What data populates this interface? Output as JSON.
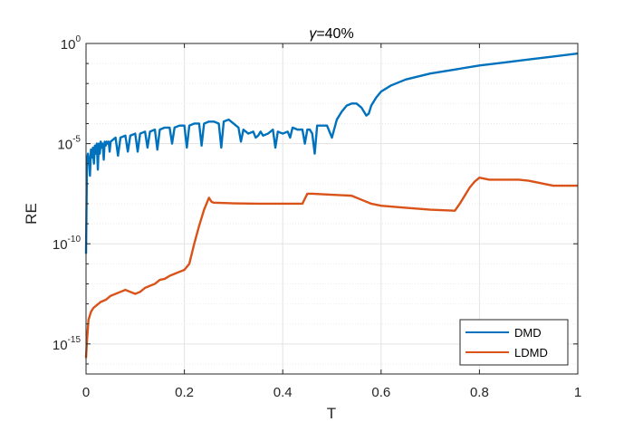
{
  "chart_data": {
    "type": "line",
    "title_prefix": "γ",
    "title_suffix": "=40%",
    "xlabel": "T",
    "ylabel": "RE",
    "xlim": [
      0,
      1
    ],
    "ylim_log10": [
      -16.5,
      0
    ],
    "y_scale": "log",
    "grid": true,
    "legend_placement": "bottom-right",
    "x_ticks": [
      "0",
      "0.2",
      "0.4",
      "0.6",
      "0.8",
      "1"
    ],
    "y_ticks": [
      {
        "base": "10",
        "exp": "0"
      },
      {
        "base": "10",
        "exp": "-5"
      },
      {
        "base": "10",
        "exp": "-10"
      },
      {
        "base": "10",
        "exp": "-15"
      }
    ],
    "series": [
      {
        "name": "DMD",
        "color": "#0072BD",
        "x": [
          0,
          0.002,
          0.004,
          0.006,
          0.008,
          0.01,
          0.012,
          0.014,
          0.016,
          0.018,
          0.02,
          0.022,
          0.024,
          0.026,
          0.028,
          0.03,
          0.032,
          0.034,
          0.036,
          0.038,
          0.04,
          0.042,
          0.044,
          0.046,
          0.048,
          0.05,
          0.06,
          0.065,
          0.07,
          0.08,
          0.085,
          0.09,
          0.1,
          0.105,
          0.11,
          0.12,
          0.125,
          0.13,
          0.14,
          0.145,
          0.15,
          0.16,
          0.17,
          0.175,
          0.18,
          0.19,
          0.2,
          0.205,
          0.21,
          0.22,
          0.23,
          0.235,
          0.24,
          0.25,
          0.26,
          0.27,
          0.275,
          0.28,
          0.29,
          0.3,
          0.31,
          0.315,
          0.32,
          0.33,
          0.34,
          0.345,
          0.35,
          0.355,
          0.36,
          0.37,
          0.38,
          0.385,
          0.39,
          0.4,
          0.41,
          0.415,
          0.42,
          0.43,
          0.44,
          0.445,
          0.45,
          0.455,
          0.46,
          0.465,
          0.47,
          0.48,
          0.49,
          0.5,
          0.51,
          0.52,
          0.53,
          0.54,
          0.55,
          0.56,
          0.57,
          0.575,
          0.58,
          0.59,
          0.6,
          0.62,
          0.65,
          0.7,
          0.75,
          0.8,
          0.85,
          0.9,
          0.95,
          1.0
        ],
        "y_log10": [
          -10.5,
          -5.8,
          -5.5,
          -5.8,
          -6.6,
          -5.3,
          -5.7,
          -5.2,
          -6.0,
          -5.1,
          -5.5,
          -5.0,
          -6.3,
          -5.0,
          -5.5,
          -4.9,
          -5.2,
          -5.0,
          -5.8,
          -4.9,
          -5.1,
          -4.9,
          -5.0,
          -4.9,
          -5.4,
          -4.9,
          -4.7,
          -5.6,
          -4.7,
          -4.6,
          -5.4,
          -4.6,
          -4.5,
          -5.4,
          -4.5,
          -4.4,
          -5.2,
          -4.4,
          -4.3,
          -5.3,
          -4.3,
          -4.2,
          -4.2,
          -5.0,
          -4.2,
          -4.1,
          -4.1,
          -5.2,
          -4.1,
          -4.0,
          -4.0,
          -5.1,
          -4.0,
          -3.9,
          -3.9,
          -4.0,
          -5.2,
          -3.9,
          -3.8,
          -4.0,
          -4.2,
          -4.9,
          -4.3,
          -4.5,
          -4.4,
          -4.7,
          -4.6,
          -4.4,
          -4.6,
          -4.5,
          -4.3,
          -5.2,
          -4.4,
          -4.5,
          -4.4,
          -4.7,
          -4.2,
          -4.3,
          -4.3,
          -5.0,
          -4.3,
          -4.3,
          -4.5,
          -5.5,
          -4.1,
          -4.1,
          -4.1,
          -4.7,
          -3.8,
          -3.4,
          -3.1,
          -3.0,
          -3.0,
          -3.2,
          -3.6,
          -3.5,
          -3.1,
          -2.7,
          -2.4,
          -2.1,
          -1.8,
          -1.5,
          -1.3,
          -1.1,
          -0.95,
          -0.8,
          -0.65,
          -0.5
        ]
      },
      {
        "name": "LDMD",
        "color": "#D95319",
        "x": [
          0,
          0.002,
          0.005,
          0.01,
          0.015,
          0.02,
          0.03,
          0.04,
          0.05,
          0.06,
          0.07,
          0.08,
          0.09,
          0.1,
          0.11,
          0.12,
          0.13,
          0.14,
          0.15,
          0.16,
          0.17,
          0.18,
          0.19,
          0.2,
          0.21,
          0.22,
          0.23,
          0.24,
          0.25,
          0.255,
          0.26,
          0.3,
          0.35,
          0.4,
          0.44,
          0.45,
          0.46,
          0.5,
          0.54,
          0.56,
          0.58,
          0.6,
          0.65,
          0.7,
          0.75,
          0.76,
          0.77,
          0.78,
          0.79,
          0.8,
          0.81,
          0.82,
          0.85,
          0.88,
          0.9,
          0.95,
          1.0
        ],
        "y_log10": [
          -15.7,
          -14.8,
          -13.8,
          -13.4,
          -13.2,
          -13.1,
          -12.9,
          -12.8,
          -12.6,
          -12.5,
          -12.4,
          -12.3,
          -12.4,
          -12.5,
          -12.4,
          -12.2,
          -12.1,
          -12.0,
          -11.8,
          -11.75,
          -11.6,
          -11.5,
          -11.4,
          -11.3,
          -11.0,
          -10.0,
          -9.1,
          -8.3,
          -7.7,
          -7.9,
          -7.95,
          -7.98,
          -8.0,
          -8.0,
          -8.0,
          -7.5,
          -7.5,
          -7.55,
          -7.6,
          -7.8,
          -8.0,
          -8.1,
          -8.2,
          -8.3,
          -8.35,
          -8.0,
          -7.6,
          -7.2,
          -6.9,
          -6.7,
          -6.75,
          -6.8,
          -6.8,
          -6.8,
          -6.85,
          -7.1,
          -7.1
        ]
      }
    ]
  }
}
